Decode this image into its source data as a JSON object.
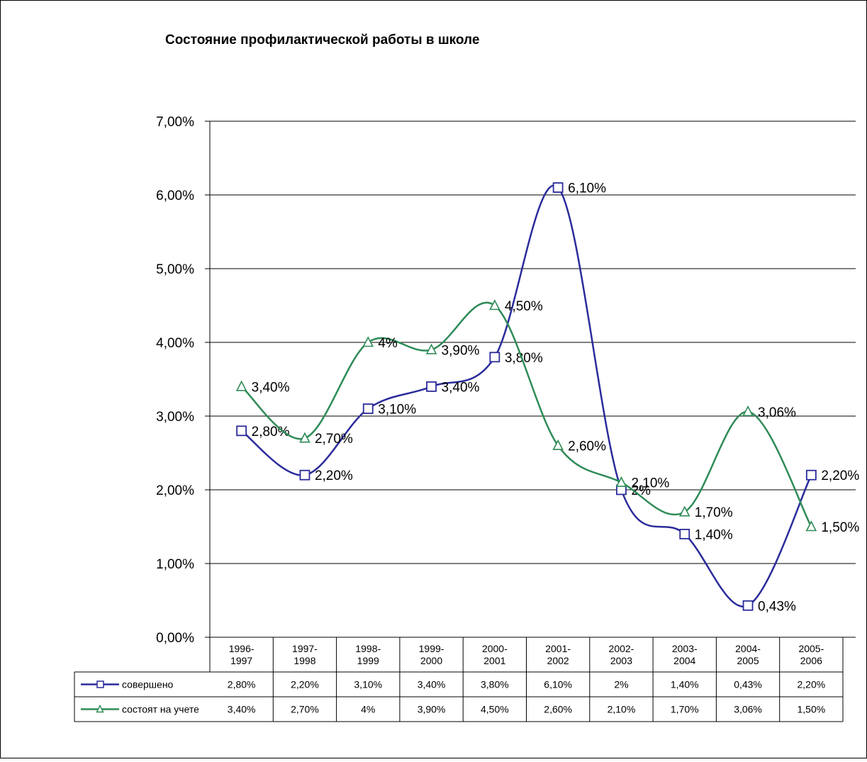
{
  "chart_data": {
    "type": "line",
    "title": "Состояние профилактической работы в школе",
    "categories": [
      "1996-1997",
      "1997-1998",
      "1998-1999",
      "1999-2000",
      "2000-2001",
      "2001-2002",
      "2002-2003",
      "2003-2004",
      "2004-2005",
      "2005-2006"
    ],
    "category_lines": [
      [
        "1996-",
        "1997"
      ],
      [
        "1997-",
        "1998"
      ],
      [
        "1998-",
        "1999"
      ],
      [
        "1999-",
        "2000"
      ],
      [
        "2000-",
        "2001"
      ],
      [
        "2001-",
        "2002"
      ],
      [
        "2002-",
        "2003"
      ],
      [
        "2003-",
        "2004"
      ],
      [
        "2004-",
        "2005"
      ],
      [
        "2005-",
        "2006"
      ]
    ],
    "ylim": [
      0,
      7
    ],
    "yticks": [
      0,
      1,
      2,
      3,
      4,
      5,
      6,
      7
    ],
    "ytick_labels": [
      "0,00%",
      "1,00%",
      "2,00%",
      "3,00%",
      "4,00%",
      "5,00%",
      "6,00%",
      "7,00%"
    ],
    "grid": true,
    "legend_placement": "data-table-below",
    "series": [
      {
        "name": "совершено",
        "color": "#2b2b9b",
        "marker": "square",
        "values": [
          2.8,
          2.2,
          3.1,
          3.4,
          3.8,
          6.1,
          2.0,
          1.4,
          0.43,
          2.2
        ],
        "labels": [
          "2,80%",
          "2,20%",
          "3,10%",
          "3,40%",
          "3,80%",
          "6,10%",
          "2%",
          "1,40%",
          "0,43%",
          "2,20%"
        ]
      },
      {
        "name": "состоят на учете",
        "color": "#2e8b57",
        "marker": "triangle",
        "values": [
          3.4,
          2.7,
          4.0,
          3.9,
          4.5,
          2.6,
          2.1,
          1.7,
          3.06,
          1.5
        ],
        "labels": [
          "3,40%",
          "2,70%",
          "4%",
          "3,90%",
          "4,50%",
          "2,60%",
          "2,10%",
          "1,70%",
          "3,06%",
          "1,50%"
        ]
      }
    ]
  }
}
